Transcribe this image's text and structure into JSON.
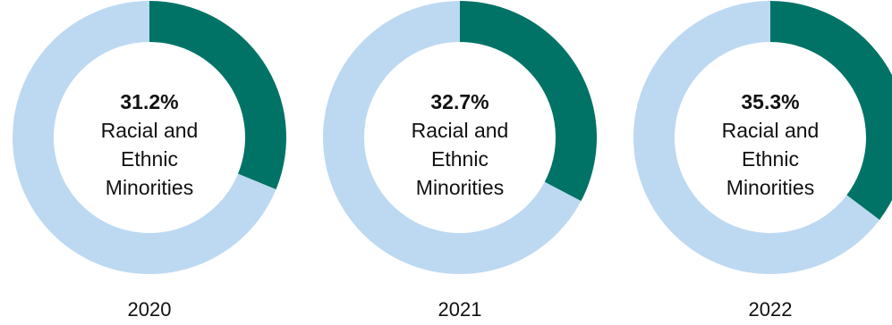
{
  "chart_data": [
    {
      "type": "pie",
      "variant": "donut",
      "category": "2020",
      "center_value": "31.2%",
      "center_label": [
        "Racial and",
        "Ethnic",
        "Minorities"
      ],
      "slices": [
        {
          "label": "Racial and Ethnic Minorities",
          "value": 31.2,
          "color": "#007366"
        },
        {
          "label": "",
          "value": 68.8,
          "color": "#BDD9F1"
        }
      ]
    },
    {
      "type": "pie",
      "variant": "donut",
      "category": "2021",
      "center_value": "32.7%",
      "center_label": [
        "Racial and",
        "Ethnic",
        "Minorities"
      ],
      "slices": [
        {
          "label": "Racial and Ethnic Minorities",
          "value": 32.7,
          "color": "#007366"
        },
        {
          "label": "",
          "value": 67.3,
          "color": "#BDD9F1"
        }
      ]
    },
    {
      "type": "pie",
      "variant": "donut",
      "category": "2022",
      "center_value": "35.3%",
      "center_label": [
        "Racial and",
        "Ethnic",
        "Minorities"
      ],
      "slices": [
        {
          "label": "Racial and Ethnic Minorities",
          "value": 35.3,
          "color": "#007366"
        },
        {
          "label": "",
          "value": 64.7,
          "color": "#BDD9F1"
        }
      ]
    }
  ]
}
